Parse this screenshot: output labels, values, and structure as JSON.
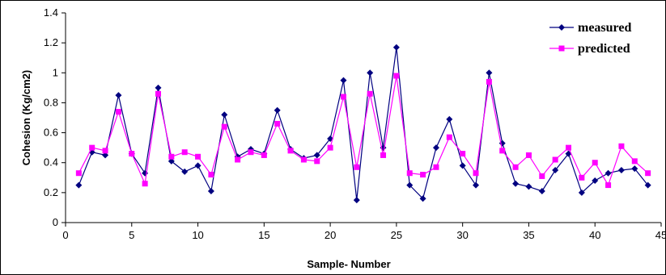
{
  "chart_data": {
    "type": "line",
    "title": "",
    "xlabel": "Sample- Number",
    "ylabel": "Cohesion (Kg/cm2)",
    "xlim": [
      0,
      45
    ],
    "ylim": [
      0,
      1.4
    ],
    "x_ticks": [
      0,
      5,
      10,
      15,
      20,
      25,
      30,
      35,
      40,
      45
    ],
    "y_ticks": [
      0,
      0.2,
      0.4,
      0.6,
      0.8,
      1,
      1.2,
      1.4
    ],
    "x_tick_labels": [
      "0",
      "5",
      "10",
      "15",
      "20",
      "25",
      "30",
      "35",
      "40",
      "45"
    ],
    "y_tick_labels": [
      "0",
      "0.2",
      "0.4",
      "0.6",
      "0.8",
      "1",
      "1.2",
      "1.4"
    ],
    "grid": false,
    "legend_position": "top-right",
    "x": [
      1,
      2,
      3,
      4,
      5,
      6,
      7,
      8,
      9,
      10,
      11,
      12,
      13,
      14,
      15,
      16,
      17,
      18,
      19,
      20,
      21,
      22,
      23,
      24,
      25,
      26,
      27,
      28,
      29,
      30,
      31,
      32,
      33,
      34,
      35,
      36,
      37,
      38,
      39,
      40,
      41,
      42,
      43,
      44
    ],
    "series": [
      {
        "name": "measured",
        "color": "#000080",
        "marker": "diamond",
        "values": [
          0.25,
          0.47,
          0.45,
          0.85,
          0.46,
          0.33,
          0.9,
          0.41,
          0.34,
          0.38,
          0.21,
          0.72,
          0.44,
          0.49,
          0.46,
          0.75,
          0.49,
          0.43,
          0.45,
          0.56,
          0.95,
          0.15,
          1.0,
          0.5,
          1.17,
          0.25,
          0.16,
          0.5,
          0.69,
          0.38,
          0.25,
          1.0,
          0.53,
          0.26,
          0.24,
          0.21,
          0.35,
          0.46,
          0.2,
          0.28,
          0.33,
          0.35,
          0.36,
          0.25
        ]
      },
      {
        "name": "predicted",
        "color": "#FF00FF",
        "marker": "square",
        "values": [
          0.33,
          0.5,
          0.48,
          0.74,
          0.46,
          0.26,
          0.86,
          0.44,
          0.47,
          0.44,
          0.32,
          0.64,
          0.42,
          0.47,
          0.45,
          0.66,
          0.48,
          0.42,
          0.41,
          0.5,
          0.84,
          0.37,
          0.86,
          0.45,
          0.98,
          0.33,
          0.32,
          0.37,
          0.57,
          0.46,
          0.33,
          0.94,
          0.48,
          0.37,
          0.45,
          0.31,
          0.42,
          0.5,
          0.3,
          0.4,
          0.25,
          0.51,
          0.41,
          0.33
        ]
      }
    ]
  }
}
